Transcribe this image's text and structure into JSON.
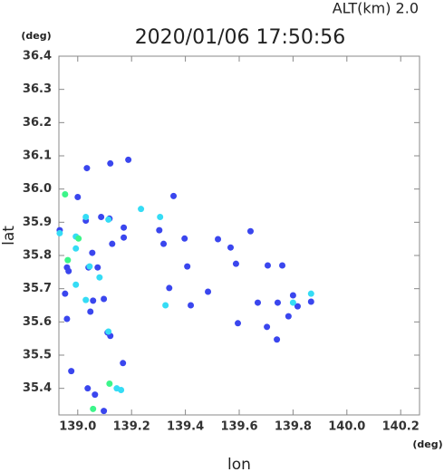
{
  "chart_data": {
    "type": "scatter",
    "title": "2020/01/06 17:50:56",
    "altitude_label": "ALT(km)  2.0",
    "x_label": "lon",
    "y_label": "lat",
    "x_unit": "(deg)",
    "y_unit": "(deg)",
    "xlim": [
      138.93,
      140.27
    ],
    "ylim": [
      35.32,
      36.4
    ],
    "xticks": [
      {
        "value": 139.0,
        "label": "139.0"
      },
      139.2,
      139.4,
      139.6,
      139.8,
      {
        "value": 140.0,
        "label": "140.0"
      },
      140.2
    ],
    "yticks": [
      35.4,
      35.5,
      35.6,
      35.7,
      35.8,
      35.9,
      {
        "value": 36.0,
        "label": "36.0"
      },
      36.1,
      36.2,
      36.3,
      36.4
    ],
    "series": [
      {
        "color": "#3a46ee",
        "x": [
          139.03,
          138.933,
          138.96,
          138.966,
          138.953,
          138.96,
          138.976,
          139.037,
          139.064,
          139.097,
          139.034,
          139.121,
          139.188,
          139.087,
          139.118,
          139.128,
          139.171,
          139.171,
          139.054,
          139.04,
          139.074,
          139.057,
          139.097,
          139.047,
          139.111,
          139.121,
          139.168,
          139.0,
          139.356,
          139.303,
          139.319,
          139.397,
          139.407,
          139.34,
          139.42,
          139.484,
          139.568,
          139.588,
          139.642,
          139.521,
          139.595,
          139.706,
          139.76,
          139.669,
          139.743,
          139.8,
          139.867,
          139.783,
          139.703,
          139.74,
          139.817
        ],
        "values": [
          35.905,
          35.876,
          35.764,
          35.753,
          35.685,
          35.609,
          35.452,
          35.4,
          35.381,
          35.332,
          36.063,
          36.077,
          36.088,
          35.916,
          35.911,
          35.835,
          35.854,
          35.884,
          35.808,
          35.764,
          35.764,
          35.664,
          35.669,
          35.631,
          35.568,
          35.558,
          35.476,
          35.976,
          35.979,
          35.876,
          35.835,
          35.851,
          35.767,
          35.702,
          35.65,
          35.691,
          35.824,
          35.775,
          35.873,
          35.849,
          35.596,
          35.77,
          35.77,
          35.658,
          35.658,
          35.68,
          35.661,
          35.617,
          35.585,
          35.547,
          35.647
        ]
      },
      {
        "color": "#35dcf5",
        "x": [
          138.933,
          138.993,
          138.993,
          139.044,
          138.993,
          139.03,
          139.114,
          139.03,
          139.306,
          139.114,
          139.145,
          139.161,
          139.326,
          139.867,
          139.8,
          139.235,
          139.081
        ],
        "values": [
          35.867,
          35.857,
          35.821,
          35.767,
          35.712,
          35.666,
          35.908,
          35.916,
          35.916,
          35.571,
          35.4,
          35.395,
          35.65,
          35.685,
          35.658,
          35.94,
          35.734
        ]
      },
      {
        "color": "#3cf58a",
        "x": [
          138.953,
          139.118,
          139.057,
          138.963,
          139.003
        ],
        "values": [
          35.984,
          35.414,
          35.338,
          35.786,
          35.851
        ]
      }
    ]
  }
}
